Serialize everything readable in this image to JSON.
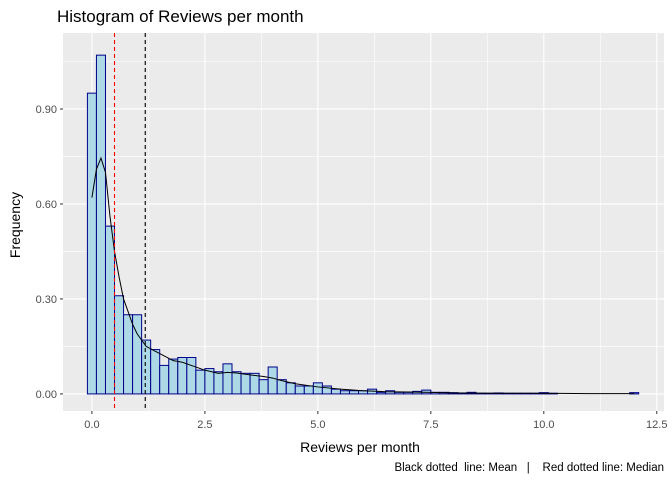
{
  "chart_data": {
    "type": "bar",
    "title": "Histogram of Reviews per month",
    "xlabel": "Reviews per month",
    "ylabel": "Frequency",
    "caption": "Black dotted  line: Mean   |    Red dotted line: Median",
    "xlim": [
      -0.64,
      12.66
    ],
    "ylim": [
      -0.054,
      1.14
    ],
    "x_ticks": [
      0,
      2.5,
      5,
      7.5,
      10,
      12.5
    ],
    "x_tick_labels": [
      "0.0",
      "2.5",
      "5.0",
      "7.5",
      "10.0",
      "12.5"
    ],
    "y_ticks": [
      0,
      0.3,
      0.6,
      0.9
    ],
    "y_tick_labels": [
      "0.00",
      "0.30",
      "0.60",
      "0.90"
    ],
    "grid": true,
    "bin_width": 0.2,
    "bins": [
      {
        "x": 0.0,
        "y": 0.95
      },
      {
        "x": 0.2,
        "y": 1.07
      },
      {
        "x": 0.4,
        "y": 0.53
      },
      {
        "x": 0.6,
        "y": 0.31
      },
      {
        "x": 0.8,
        "y": 0.25
      },
      {
        "x": 1.0,
        "y": 0.25
      },
      {
        "x": 1.2,
        "y": 0.17
      },
      {
        "x": 1.4,
        "y": 0.14
      },
      {
        "x": 1.6,
        "y": 0.09
      },
      {
        "x": 1.8,
        "y": 0.11
      },
      {
        "x": 2.0,
        "y": 0.115
      },
      {
        "x": 2.2,
        "y": 0.115
      },
      {
        "x": 2.4,
        "y": 0.075
      },
      {
        "x": 2.6,
        "y": 0.08
      },
      {
        "x": 2.8,
        "y": 0.07
      },
      {
        "x": 3.0,
        "y": 0.095
      },
      {
        "x": 3.2,
        "y": 0.07
      },
      {
        "x": 3.4,
        "y": 0.065
      },
      {
        "x": 3.6,
        "y": 0.065
      },
      {
        "x": 3.8,
        "y": 0.045
      },
      {
        "x": 4.0,
        "y": 0.085
      },
      {
        "x": 4.2,
        "y": 0.045
      },
      {
        "x": 4.4,
        "y": 0.035
      },
      {
        "x": 4.6,
        "y": 0.025
      },
      {
        "x": 4.8,
        "y": 0.025
      },
      {
        "x": 5.0,
        "y": 0.035
      },
      {
        "x": 5.2,
        "y": 0.025
      },
      {
        "x": 5.4,
        "y": 0.015
      },
      {
        "x": 5.6,
        "y": 0.01
      },
      {
        "x": 5.8,
        "y": 0.01
      },
      {
        "x": 6.0,
        "y": 0.01
      },
      {
        "x": 6.2,
        "y": 0.015
      },
      {
        "x": 6.4,
        "y": 0.005
      },
      {
        "x": 6.6,
        "y": 0.01
      },
      {
        "x": 6.8,
        "y": 0.005
      },
      {
        "x": 7.0,
        "y": 0.005
      },
      {
        "x": 7.2,
        "y": 0.008
      },
      {
        "x": 7.4,
        "y": 0.012
      },
      {
        "x": 7.6,
        "y": 0.005
      },
      {
        "x": 7.8,
        "y": 0.005
      },
      {
        "x": 8.0,
        "y": 0.004
      },
      {
        "x": 8.2,
        "y": 0.003
      },
      {
        "x": 8.4,
        "y": 0.005
      },
      {
        "x": 8.6,
        "y": 0.002
      },
      {
        "x": 8.8,
        "y": 0.002
      },
      {
        "x": 9.0,
        "y": 0.003
      },
      {
        "x": 9.2,
        "y": 0.002
      },
      {
        "x": 9.4,
        "y": 0.002
      },
      {
        "x": 9.6,
        "y": 0.002
      },
      {
        "x": 9.8,
        "y": 0.002
      },
      {
        "x": 10.0,
        "y": 0.004
      },
      {
        "x": 10.2,
        "y": 0.002
      },
      {
        "x": 12.0,
        "y": 0.004
      }
    ],
    "density": {
      "x": [
        0.0,
        0.1,
        0.2,
        0.3,
        0.4,
        0.5,
        0.6,
        0.7,
        0.8,
        0.9,
        1.0,
        1.2,
        1.4,
        1.6,
        1.8,
        2.0,
        2.2,
        2.5,
        2.8,
        3.0,
        3.2,
        3.5,
        3.8,
        4.0,
        4.2,
        4.5,
        5.0,
        5.5,
        6.0,
        6.5,
        7.0,
        7.5,
        8.0,
        9.0,
        10.0,
        11.0,
        12.0
      ],
      "y": [
        0.62,
        0.71,
        0.745,
        0.7,
        0.56,
        0.45,
        0.37,
        0.3,
        0.26,
        0.22,
        0.19,
        0.15,
        0.135,
        0.12,
        0.105,
        0.1,
        0.09,
        0.075,
        0.065,
        0.068,
        0.066,
        0.06,
        0.055,
        0.05,
        0.042,
        0.032,
        0.022,
        0.015,
        0.01,
        0.007,
        0.006,
        0.005,
        0.003,
        0.002,
        0.002,
        0.001,
        0.001
      ]
    },
    "mean": 1.18,
    "median": 0.5,
    "colors": {
      "panel": "#ebebeb",
      "grid_major": "#ffffff",
      "bar_fill": "#add8e6",
      "bar_stroke": "#00008b",
      "density": "#000000",
      "mean_line": "#000000",
      "median_line": "#ff0000"
    }
  }
}
